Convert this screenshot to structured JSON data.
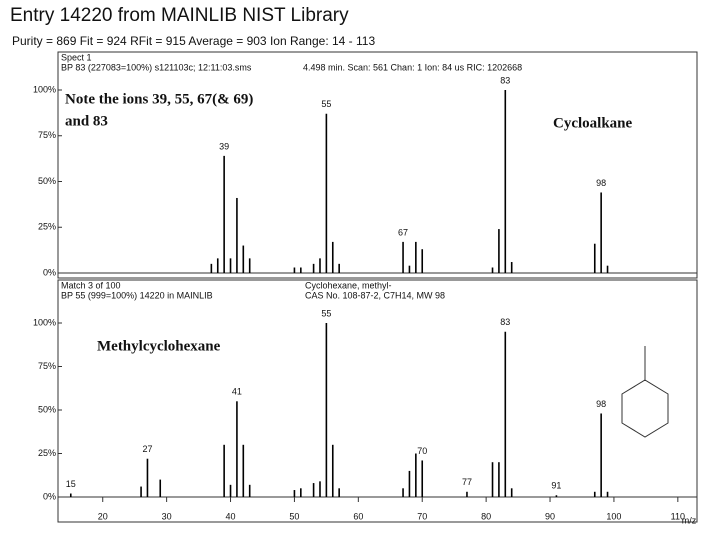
{
  "header": {
    "title": "Entry 14220 from MAINLIB NIST Library",
    "info": "Purity = 869  Fit = 924  RFit = 915  Average = 903  Ion Range: 14 - 113"
  },
  "chart_data": [
    {
      "type": "bar",
      "header_left": [
        "Spect 1",
        "BP 83 (227083=100%) s121103c;   12:11:03.sms"
      ],
      "header_right": [
        "4.498 min. Scan: 561 Chan: 1 Ion: 84 us RIC: 1202668"
      ],
      "annotations": [
        "Note the ions 39, 55, 67(& 69)",
        "and 83",
        "Cycloalkane"
      ],
      "x": [
        37,
        38,
        39,
        40,
        41,
        42,
        43,
        50,
        51,
        53,
        54,
        55,
        56,
        57,
        67,
        68,
        69,
        70,
        81,
        82,
        83,
        84,
        97,
        98,
        99
      ],
      "values": [
        5,
        8,
        64,
        8,
        41,
        15,
        8,
        3,
        3,
        5,
        8,
        87,
        17,
        5,
        17,
        4,
        17,
        13,
        3,
        24,
        100,
        6,
        16,
        44,
        4
      ],
      "color": "#000000",
      "labeled_peaks": [
        39,
        55,
        67,
        83,
        98
      ],
      "xlim": [
        13,
        113
      ],
      "ylim": [
        0,
        100
      ],
      "yticks": [
        {
          "value": 100,
          "label": "100%"
        },
        {
          "value": 75,
          "label": "75%"
        },
        {
          "value": 50,
          "label": "50%"
        },
        {
          "value": 25,
          "label": "25%"
        },
        {
          "value": 0,
          "label": "0%"
        }
      ]
    },
    {
      "type": "bar",
      "header_left": [
        "Match 3 of 100",
        "BP 55 (999=100%) 14220 in MAINLIB"
      ],
      "header_right": [
        "Cyclohexane, methyl-",
        "CAS No. 108-87-2, C7H14, MW 98"
      ],
      "annotations": [
        "Methylcyclohexane"
      ],
      "x": [
        15,
        26,
        27,
        29,
        39,
        40,
        41,
        42,
        43,
        50,
        51,
        53,
        54,
        55,
        56,
        57,
        67,
        68,
        69,
        70,
        77,
        81,
        82,
        83,
        84,
        91,
        97,
        98,
        99
      ],
      "values": [
        2,
        6,
        22,
        10,
        30,
        7,
        55,
        30,
        7,
        4,
        5,
        8,
        9,
        100,
        30,
        5,
        5,
        15,
        25,
        21,
        3,
        20,
        20,
        95,
        5,
        1,
        3,
        48,
        3
      ],
      "color": "#000000",
      "labeled_peaks": [
        15,
        27,
        41,
        55,
        70,
        77,
        83,
        91,
        98
      ],
      "xlabel": "m/z",
      "xlim": [
        13,
        113
      ],
      "ylim": [
        0,
        100
      ],
      "xticks": [
        20,
        30,
        40,
        50,
        60,
        70,
        80,
        90,
        100,
        110
      ],
      "yticks": [
        {
          "value": 100,
          "label": "100%"
        },
        {
          "value": 75,
          "label": "75%"
        },
        {
          "value": 50,
          "label": "50%"
        },
        {
          "value": 25,
          "label": "25%"
        },
        {
          "value": 0,
          "label": "0%"
        }
      ]
    }
  ]
}
